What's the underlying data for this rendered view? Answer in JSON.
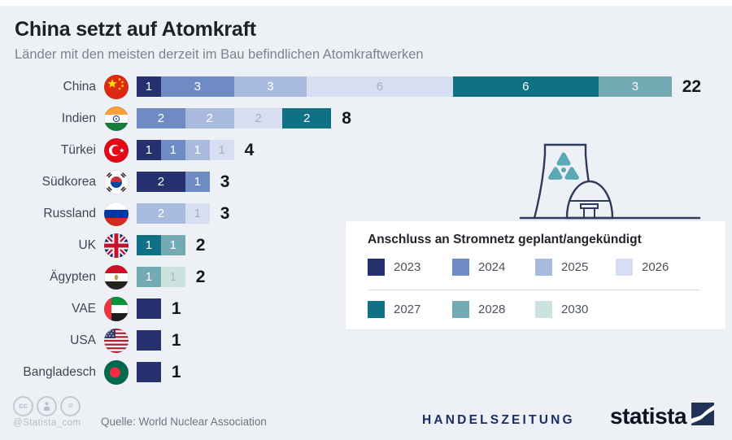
{
  "title": "China setzt auf Atomkraft",
  "subtitle": "Länder mit den meisten derzeit im Bau befindlichen Atomkraftwerken",
  "chart_data": {
    "type": "bar",
    "stacked": true,
    "orientation": "horizontal",
    "value_unit": "Atomkraftwerke im Bau",
    "legend_title": "Anschluss an Stromnetz geplant/angekündigt",
    "legend_position": "right-bottom box",
    "years": {
      "2023": {
        "color": "#25306e",
        "text": "#ffffff"
      },
      "2024": {
        "color": "#6e8cc3",
        "text": "#ffffff"
      },
      "2025": {
        "color": "#a9badf",
        "text": "#ffffff"
      },
      "2026": {
        "color": "#d8def1",
        "text": "#a4aec6"
      },
      "2027": {
        "color": "#0f7183",
        "text": "#ffffff"
      },
      "2028": {
        "color": "#74aab4",
        "text": "#ffffff"
      },
      "2030": {
        "color": "#cbe2de",
        "text": "#9fc0bc"
      }
    },
    "legend_rows": [
      [
        "2023",
        "2024",
        "2025",
        "2026"
      ],
      [
        "2027",
        "2028",
        "2030"
      ]
    ],
    "rows": [
      {
        "country": "China",
        "flag_code": "cn",
        "flag_icon": "china-flag-icon",
        "total": 22,
        "segments": [
          {
            "year": "2023",
            "value": 1
          },
          {
            "year": "2024",
            "value": 3
          },
          {
            "year": "2025",
            "value": 3
          },
          {
            "year": "2026",
            "value": 6
          },
          {
            "year": "2027",
            "value": 6
          },
          {
            "year": "2028",
            "value": 3
          }
        ]
      },
      {
        "country": "Indien",
        "flag_code": "in",
        "flag_icon": "india-flag-icon",
        "total": 8,
        "segments": [
          {
            "year": "2024",
            "value": 2
          },
          {
            "year": "2025",
            "value": 2
          },
          {
            "year": "2026",
            "value": 2
          },
          {
            "year": "2027",
            "value": 2
          }
        ]
      },
      {
        "country": "Türkei",
        "flag_code": "tr",
        "flag_icon": "turkey-flag-icon",
        "total": 4,
        "segments": [
          {
            "year": "2023",
            "value": 1
          },
          {
            "year": "2024",
            "value": 1
          },
          {
            "year": "2025",
            "value": 1
          },
          {
            "year": "2026",
            "value": 1
          }
        ]
      },
      {
        "country": "Südkorea",
        "flag_code": "kr",
        "flag_icon": "south-korea-flag-icon",
        "total": 3,
        "segments": [
          {
            "year": "2023",
            "value": 2
          },
          {
            "year": "2024",
            "value": 1
          }
        ]
      },
      {
        "country": "Russland",
        "flag_code": "ru",
        "flag_icon": "russia-flag-icon",
        "total": 3,
        "segments": [
          {
            "year": "2025",
            "value": 2
          },
          {
            "year": "2026",
            "value": 1
          }
        ]
      },
      {
        "country": "UK",
        "flag_code": "gb",
        "flag_icon": "uk-flag-icon",
        "total": 2,
        "segments": [
          {
            "year": "2027",
            "value": 1
          },
          {
            "year": "2028",
            "value": 1
          }
        ]
      },
      {
        "country": "Ägypten",
        "flag_code": "eg",
        "flag_icon": "egypt-flag-icon",
        "total": 2,
        "segments": [
          {
            "year": "2028",
            "value": 1
          },
          {
            "year": "2030",
            "value": 1
          }
        ]
      },
      {
        "country": "VAE",
        "flag_code": "ae",
        "flag_icon": "uae-flag-icon",
        "total": 1,
        "segments": [
          {
            "year": "2023",
            "value": 1
          }
        ]
      },
      {
        "country": "USA",
        "flag_code": "us",
        "flag_icon": "usa-flag-icon",
        "total": 1,
        "segments": [
          {
            "year": "2023",
            "value": 1
          }
        ]
      },
      {
        "country": "Bangladesch",
        "flag_code": "bd",
        "flag_icon": "bangladesh-flag-icon",
        "total": 1,
        "segments": [
          {
            "year": "2023",
            "value": 1
          }
        ]
      }
    ]
  },
  "illustration": {
    "name": "nuclear-power-plant-icon",
    "outline_color": "#2f3a5c",
    "radiation_color": "#5ba9b6"
  },
  "footer": {
    "cc_icons": [
      "cc-icon",
      "attribution-person-icon",
      "equal-icon"
    ],
    "handle": "@Statista_com",
    "source": "Quelle: World Nuclear Association",
    "partner": "HANDELSZEITUNG",
    "brand": "statista"
  },
  "background_color": "#edf1f6"
}
